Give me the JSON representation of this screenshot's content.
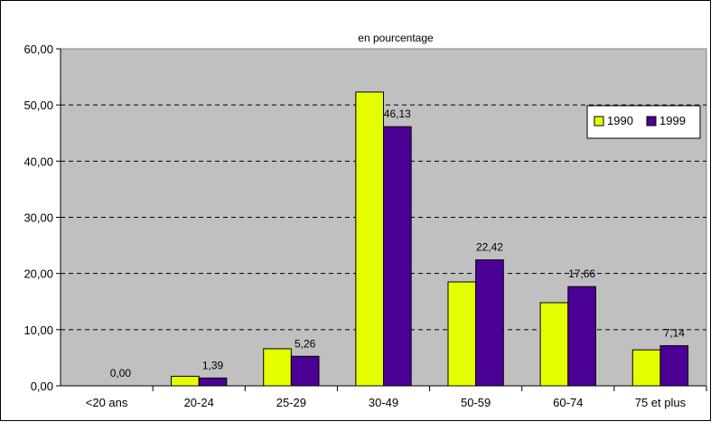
{
  "chart_data": {
    "type": "bar",
    "title": "en pourcentage",
    "xlabel": "",
    "ylabel": "",
    "categories": [
      "<20 ans",
      "20-24",
      "25-29",
      "30-49",
      "50-59",
      "60-74",
      "75 et plus"
    ],
    "series": [
      {
        "name": "1990",
        "color": "#e6ff00",
        "values": [
          0.0,
          1.7,
          6.6,
          52.3,
          18.5,
          14.8,
          6.4
        ]
      },
      {
        "name": "1999",
        "color": "#4b0096",
        "values": [
          0.0,
          1.39,
          5.26,
          46.13,
          22.42,
          17.66,
          7.14
        ]
      }
    ],
    "data_labels": [
      "0,00",
      "1,39",
      "5,26",
      "46,13",
      "22,42",
      "17,66",
      "7,14"
    ],
    "ylim": [
      0,
      60
    ],
    "yticks": [
      "0,00",
      "10,00",
      "20,00",
      "30,00",
      "40,00",
      "50,00",
      "60,00"
    ],
    "plot_background": "#c0c0c0",
    "grid": "dashed horizontal",
    "legend_position": "top-right"
  }
}
